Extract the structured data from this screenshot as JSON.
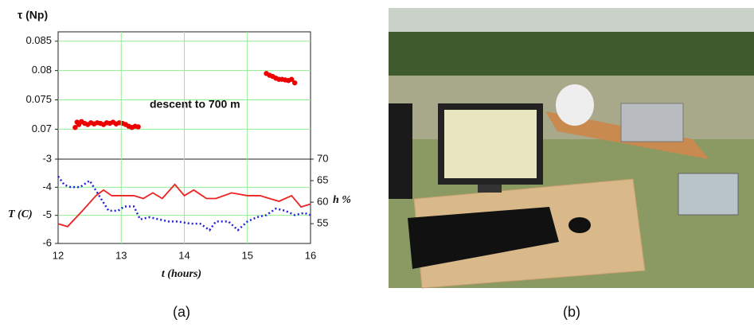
{
  "panel_labels": {
    "a": "(a)",
    "b": "(b)"
  },
  "chart_data": [
    {
      "type": "scatter",
      "ylabel": "τ (Np)",
      "annotation": "descent to 700 m",
      "color": "#ee0000",
      "xlim": [
        12,
        16
      ],
      "ylim": [
        0.0649,
        0.0866
      ],
      "yticks": [
        0.07,
        0.075,
        0.08,
        0.085
      ],
      "grid": true,
      "x": [
        12.27,
        12.3,
        12.33,
        12.37,
        12.42,
        12.47,
        12.52,
        12.57,
        12.62,
        12.67,
        12.72,
        12.77,
        12.82,
        12.87,
        12.92,
        12.97,
        13.02,
        13.07,
        13.12,
        13.17,
        13.22,
        13.27,
        15.3,
        15.35,
        15.4,
        15.45,
        15.5,
        15.55,
        15.6,
        15.65,
        15.7,
        15.75
      ],
      "values": [
        0.0703,
        0.0712,
        0.0708,
        0.0713,
        0.071,
        0.0708,
        0.0711,
        0.0709,
        0.0711,
        0.071,
        0.0708,
        0.0711,
        0.071,
        0.0712,
        0.0709,
        0.0711,
        0.071,
        0.0708,
        0.0705,
        0.0703,
        0.0705,
        0.0704,
        0.0795,
        0.0792,
        0.079,
        0.0787,
        0.0785,
        0.0785,
        0.0784,
        0.0783,
        0.0785,
        0.0779
      ]
    },
    {
      "type": "line",
      "xlabel": "t (hours)",
      "ylabel": "T (C)",
      "y2label": "h %",
      "xlim": [
        12,
        16
      ],
      "xticks": [
        12,
        13,
        14,
        15,
        16
      ],
      "ylim": [
        -6,
        -3
      ],
      "yticks": [
        -6,
        -5,
        -4,
        -3
      ],
      "y2lim": [
        50.4,
        70
      ],
      "y2ticks": [
        55,
        60,
        65,
        70
      ],
      "grid": true,
      "series": [
        {
          "color": "#ee2222",
          "dash": false,
          "x": [
            12,
            12.15,
            12.4,
            12.6,
            12.72,
            12.85,
            13,
            13.2,
            13.35,
            13.5,
            13.65,
            13.85,
            14,
            14.15,
            14.35,
            14.5,
            14.75,
            15,
            15.2,
            15.35,
            15.5,
            15.7,
            15.85,
            16
          ],
          "values": [
            -5.3,
            -5.4,
            -4.8,
            -4.3,
            -4.1,
            -4.3,
            -4.3,
            -4.3,
            -4.4,
            -4.2,
            -4.4,
            -3.9,
            -4.3,
            -4.1,
            -4.4,
            -4.4,
            -4.2,
            -4.3,
            -4.3,
            -4.4,
            -4.5,
            -4.3,
            -4.7,
            -4.6
          ]
        },
        {
          "color": "#2222dd",
          "dash": true,
          "axis": "y2",
          "x": [
            12,
            12.1,
            12.2,
            12.35,
            12.5,
            12.65,
            12.8,
            12.95,
            13.05,
            13.2,
            13.3,
            13.45,
            13.6,
            13.75,
            13.9,
            14.1,
            14.25,
            14.4,
            14.5,
            14.7,
            14.85,
            15,
            15.15,
            15.3,
            15.45,
            15.6,
            15.75,
            15.9,
            16
          ],
          "values": [
            66,
            64,
            63.5,
            63.5,
            65,
            61.5,
            58,
            58,
            59,
            59,
            56,
            56.5,
            56,
            55.5,
            55.5,
            55,
            55,
            53.5,
            55.5,
            55.5,
            53.5,
            55.5,
            56.5,
            57,
            58.5,
            58,
            57,
            57.5,
            57
          ]
        }
      ]
    }
  ]
}
